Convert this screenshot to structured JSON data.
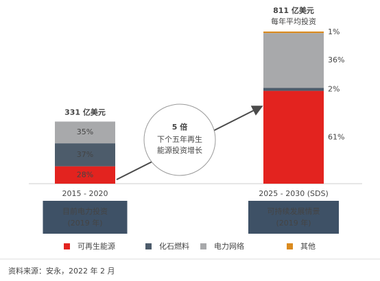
{
  "chart_data": {
    "type": "bar",
    "stacked": true,
    "categories": [
      "2015 - 2020",
      "2025 - 2030 (SDS)"
    ],
    "totals": {
      "values": [
        331,
        811
      ],
      "value_labels": [
        "331 亿美元",
        "811 亿美元"
      ]
    },
    "total_note": "每年平均投资",
    "series": [
      {
        "name": "可再生能源",
        "color": "#e3231f",
        "values": [
          28,
          61
        ],
        "value_labels": [
          "28%",
          "61%"
        ]
      },
      {
        "name": "化石燃料",
        "color": "#4d5c6b",
        "values": [
          37,
          2
        ],
        "value_labels": [
          "37%",
          "2%"
        ]
      },
      {
        "name": "电力网络",
        "color": "#a8a9ab",
        "values": [
          35,
          36
        ],
        "value_labels": [
          "35%",
          "36%"
        ]
      },
      {
        "name": "其他",
        "color": "#da8b1f",
        "values": [
          0,
          1
        ],
        "value_labels": [
          null,
          "1%"
        ]
      }
    ],
    "category_boxes": [
      [
        "目前电力投资",
        "(2019 年)"
      ],
      [
        "可持续发展情景",
        "(2019 年)"
      ]
    ],
    "annotation": [
      "5 倍",
      "下个五年再生",
      "能源投资增长"
    ],
    "source": "资料来源：安永，2022 年 2 月"
  }
}
